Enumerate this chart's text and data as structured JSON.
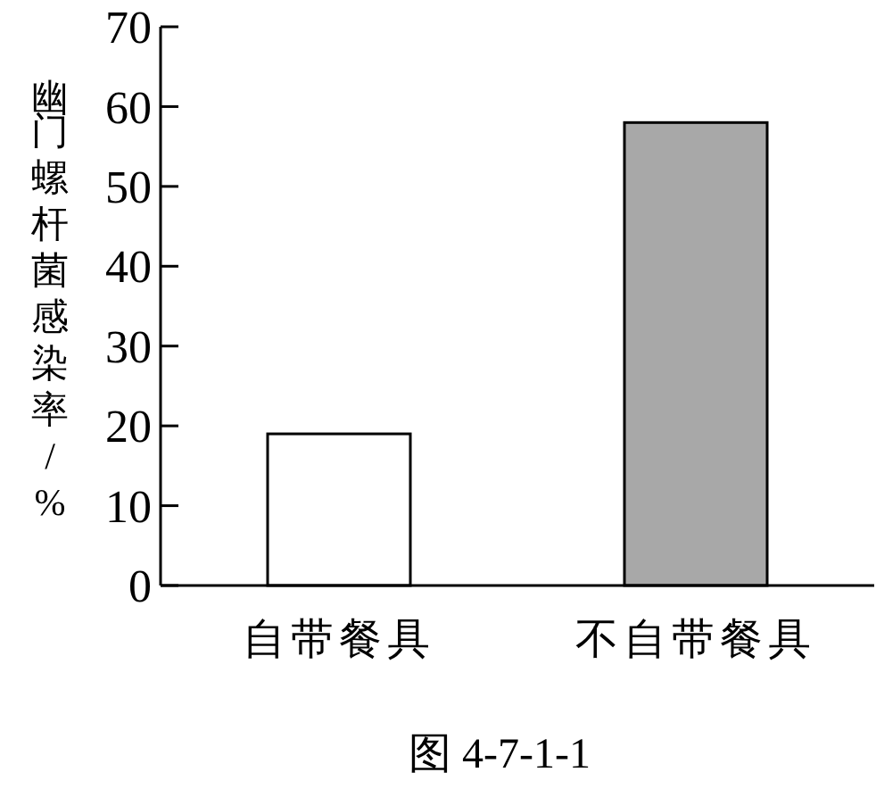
{
  "chart_data": {
    "type": "bar",
    "categories": [
      "自带餐具",
      "不自带餐具"
    ],
    "values": [
      19,
      58
    ],
    "colors": [
      "#ffffff",
      "#a8a8a8"
    ],
    "ylabel": "幽门螺杆菌感染率/%",
    "ylim": [
      0,
      70
    ],
    "yticks": [
      0,
      10,
      20,
      30,
      40,
      50,
      60,
      70
    ],
    "annotations": [
      "图 4-7-1-1"
    ]
  }
}
